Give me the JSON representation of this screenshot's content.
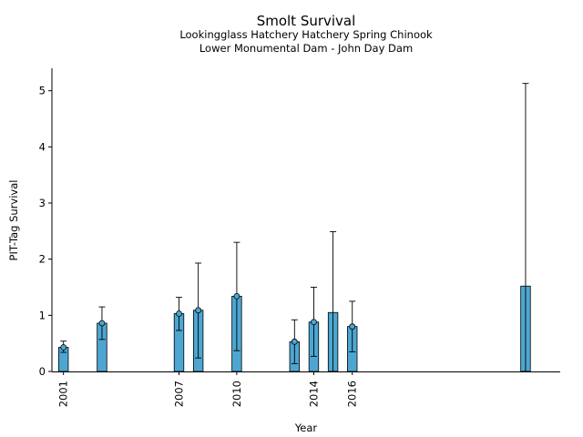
{
  "chart_data": {
    "type": "bar",
    "title": "Smolt Survival",
    "subtitle_lines": [
      "Lookingglass Hatchery Hatchery Spring Chinook",
      "Lower Monumental Dam - John Day Dam"
    ],
    "xlabel": "Year",
    "ylabel": "PIT-Tag Survival",
    "xlim": [
      2000.4,
      2026.8
    ],
    "ylim": [
      0,
      5.4
    ],
    "yticks": [
      0,
      1,
      2,
      3,
      4,
      5
    ],
    "xticks": [
      2001,
      2007,
      2010,
      2014,
      2016
    ],
    "bar_color": "#4da6d2",
    "points": [
      {
        "x": 2001,
        "y": 0.43,
        "lo": 0.34,
        "hi": 0.54,
        "marker": true
      },
      {
        "x": 2003,
        "y": 0.86,
        "lo": 0.57,
        "hi": 1.15,
        "marker": true
      },
      {
        "x": 2007,
        "y": 1.03,
        "lo": 0.73,
        "hi": 1.32,
        "marker": true
      },
      {
        "x": 2008,
        "y": 1.09,
        "lo": 0.24,
        "hi": 1.93,
        "marker": true
      },
      {
        "x": 2010,
        "y": 1.34,
        "lo": 0.37,
        "hi": 2.3,
        "marker": true
      },
      {
        "x": 2013,
        "y": 0.53,
        "lo": 0.14,
        "hi": 0.92,
        "marker": true
      },
      {
        "x": 2014,
        "y": 0.88,
        "lo": 0.27,
        "hi": 1.5,
        "marker": true
      },
      {
        "x": 2015,
        "y": 1.05,
        "lo": 0.0,
        "hi": 2.49,
        "marker": false
      },
      {
        "x": 2016,
        "y": 0.8,
        "lo": 0.35,
        "hi": 1.25,
        "marker": true
      },
      {
        "x": 2025,
        "y": 1.52,
        "lo": 0.0,
        "hi": 5.13,
        "marker": false
      }
    ]
  }
}
